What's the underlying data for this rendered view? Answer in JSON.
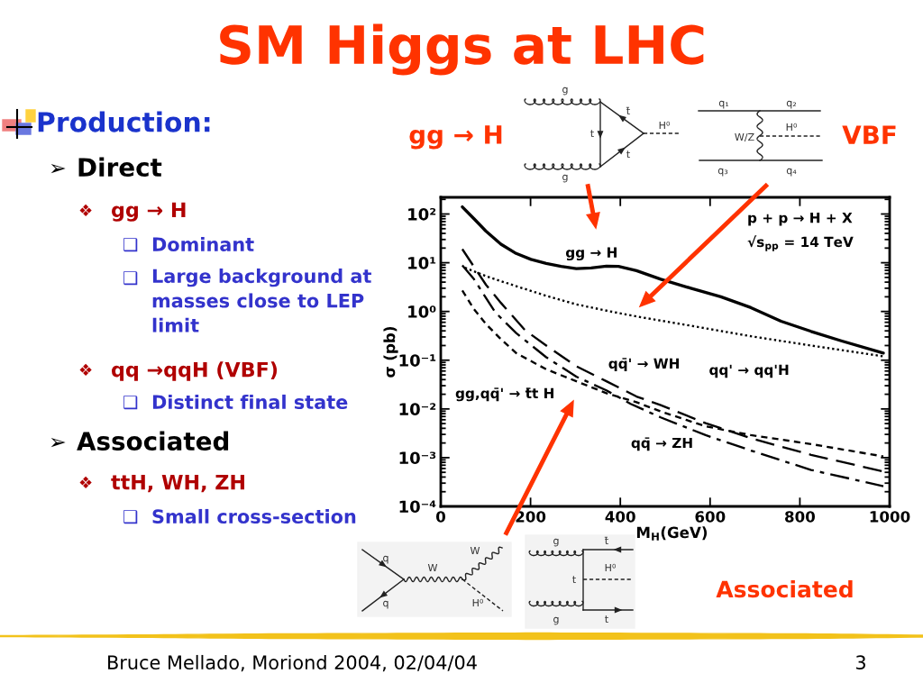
{
  "chart_data": {
    "type": "line",
    "title": "SM Higgs at LHC",
    "xlabel": "M$_{H}$(GeV)",
    "ylabel": "σ (pb)",
    "log": "y",
    "xlim": [
      0,
      1000
    ],
    "ylim": [
      0.0001,
      220
    ],
    "xticks": [
      0,
      200,
      400,
      600,
      800,
      1000
    ],
    "yticks": [
      {
        "value": 0.0001,
        "label": "10⁻⁴"
      },
      {
        "value": 0.001,
        "label": "10⁻³"
      },
      {
        "value": 0.01,
        "label": "10⁻²"
      },
      {
        "value": 0.1,
        "label": "10⁻¹"
      },
      {
        "value": 1,
        "label": "10⁰"
      },
      {
        "value": 10,
        "label": "10¹"
      },
      {
        "value": 100,
        "label": "10²"
      }
    ],
    "series": [
      {
        "name": "gg → H",
        "color": "#000000",
        "line_style": "solid",
        "x": [
          48,
          74,
          100,
          134,
          168,
          201,
          235,
          268,
          302,
          335,
          369,
          396,
          436,
          490,
          557,
          624,
          691,
          758,
          825,
          892,
          986
        ],
        "values": [
          140,
          80,
          45,
          24,
          15.5,
          11.7,
          9.7,
          8.4,
          7.6,
          7.8,
          8.5,
          8.4,
          6.9,
          4.6,
          3.0,
          2.0,
          1.2,
          0.63,
          0.39,
          0.25,
          0.14
        ]
      },
      {
        "name": "qq' → qq'H",
        "color": "#000000",
        "line_style": "dotted",
        "x": [
          54,
          101,
          168,
          235,
          302,
          369,
          436,
          557,
          691,
          825,
          986
        ],
        "values": [
          7.9,
          5.3,
          3.3,
          2.1,
          1.4,
          1.04,
          0.79,
          0.51,
          0.31,
          0.2,
          0.12
        ]
      },
      {
        "name": "qq̄' → WH",
        "color": "#000000",
        "line_style": "dashed",
        "x": [
          48,
          101,
          134,
          188,
          235,
          302,
          369,
          436,
          490,
          590,
          691,
          825,
          986
        ],
        "values": [
          19,
          3.5,
          1.5,
          0.41,
          0.2,
          0.075,
          0.037,
          0.018,
          0.012,
          0.0051,
          0.0025,
          0.00114,
          0.00052
        ]
      },
      {
        "name": "qq̄ → ZH",
        "color": "#000000",
        "line_style": "dashdot",
        "x": [
          48,
          74,
          121,
          168,
          235,
          302,
          369,
          423,
          490,
          590,
          691,
          825,
          986
        ],
        "values": [
          8.8,
          4.6,
          0.97,
          0.36,
          0.115,
          0.046,
          0.024,
          0.0127,
          0.0067,
          0.0029,
          0.0014,
          0.00056,
          0.00026
        ]
      },
      {
        "name": "gg,qq̄' → t̄t H",
        "color": "#000000",
        "line_style": "short dashed",
        "x": [
          48,
          74,
          101,
          134,
          168,
          235,
          302,
          369,
          436,
          490,
          590,
          691,
          825,
          986
        ],
        "values": [
          2.7,
          1.12,
          0.55,
          0.27,
          0.14,
          0.065,
          0.037,
          0.021,
          0.0137,
          0.0089,
          0.0044,
          0.0029,
          0.0019,
          0.00106
        ]
      }
    ],
    "annotations": [
      "Production:",
      "➢",
      "Direct",
      "❖",
      "gg → H",
      "❑",
      "Dominant",
      "❑",
      "Large background at\nmasses close to LEP\nlimit",
      "❖",
      "qq →qqH (VBF)",
      "❑",
      "Distinct final state",
      "➢",
      "Associated",
      "❖",
      "ttH, WH, ZH",
      "❑",
      "Small cross-section",
      "gg → H",
      "VBF",
      "Associated",
      "Bruce Mellado, Moriond 2004, 02/04/04",
      "3",
      "p + p → H + X",
      "√s$_{pp}$ = 14 TeV",
      "g",
      "g",
      "t̄",
      "t",
      "t",
      "H⁰",
      "q₁",
      "q₂",
      "W/Z",
      "H⁰",
      "q₃",
      "q₄",
      "q",
      "q",
      "W",
      "W",
      "H⁰",
      "g",
      "t̄",
      "H⁰",
      "t",
      "g",
      "t"
    ]
  }
}
